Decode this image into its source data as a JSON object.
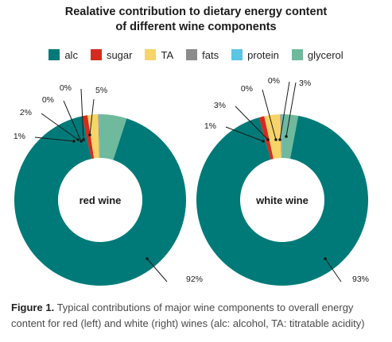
{
  "title_line1": "Realative contribution to dietary energy content",
  "title_line2": "of different wine components",
  "legend": [
    {
      "label": "alc",
      "color": "#007a78"
    },
    {
      "label": "sugar",
      "color": "#d42b1e"
    },
    {
      "label": "TA",
      "color": "#f7d468"
    },
    {
      "label": "fats",
      "color": "#8c8c8c"
    },
    {
      "label": "protein",
      "color": "#5bc5e3"
    },
    {
      "label": "glycerol",
      "color": "#6fb99c"
    }
  ],
  "chart_data": [
    {
      "type": "pie",
      "center_label": "red wine",
      "categories": [
        "alc",
        "sugar",
        "TA",
        "fats",
        "protein",
        "glycerol"
      ],
      "values": [
        92,
        1,
        2,
        0,
        0,
        5
      ],
      "value_labels": [
        "92%",
        "1%",
        "2%",
        "0%",
        "0%",
        "5%"
      ],
      "colors": [
        "#007a78",
        "#d42b1e",
        "#f7d468",
        "#8c8c8c",
        "#5bc5e3",
        "#6fb99c"
      ]
    },
    {
      "type": "pie",
      "center_label": "white wine",
      "categories": [
        "alc",
        "sugar",
        "TA",
        "fats",
        "protein",
        "glycerol"
      ],
      "values": [
        93,
        1,
        3,
        0,
        0,
        3
      ],
      "value_labels": [
        "93%",
        "1%",
        "3%",
        "0%",
        "0%",
        "3%"
      ],
      "colors": [
        "#007a78",
        "#d42b1e",
        "#f7d468",
        "#8c8c8c",
        "#5bc5e3",
        "#6fb99c"
      ]
    }
  ],
  "caption": {
    "label": "Figure 1.",
    "text": " Typical contributions of major wine components to overall energy content for red (left) and white (right) wines (alc: alcohol, TA: titratable acidity)"
  }
}
